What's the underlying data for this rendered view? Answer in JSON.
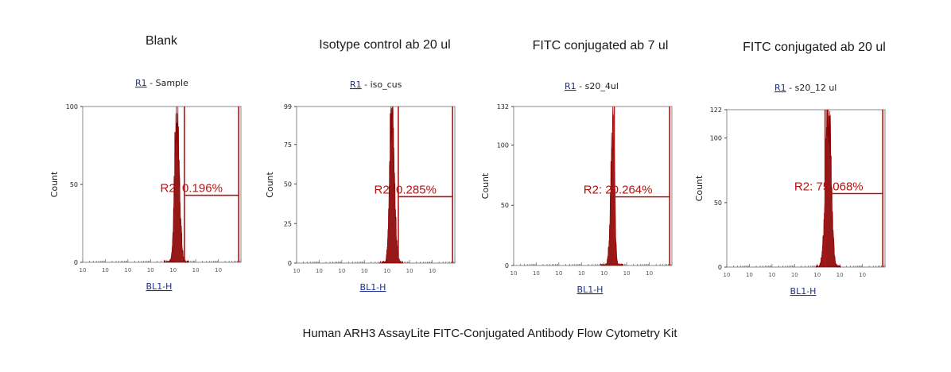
{
  "figure": {
    "caption": "Human ARH3 AssayLite FITC-Conjugated Antibody Flow Cytometry Kit"
  },
  "colors": {
    "histogram": "#8b0000",
    "gate": "#b01414",
    "frame": "#8a8a8a",
    "link": "#1f2f8f"
  },
  "chart_data": [
    {
      "type": "area",
      "title": "Blank",
      "region_link": "R1",
      "region_text": " - Sample",
      "xlabel": "BL1-H",
      "ylabel": "Count",
      "x_scale": "log",
      "xlim": [
        1,
        10000000
      ],
      "x_ticks": [
        "10",
        "10",
        "10",
        "10",
        "10",
        "10",
        "10"
      ],
      "ylim": [
        0,
        100
      ],
      "y_ticks": [
        0,
        50,
        100
      ],
      "histogram": {
        "peak_log_x": 4.15,
        "peak_count": 100,
        "sigma_left": 0.09,
        "sigma_right": 0.12,
        "tail_log_end": 4.55,
        "tail_level": 8
      },
      "gate": {
        "label": "R2: 0.196%",
        "start_log_x": 4.5,
        "end_log_x": 6.9,
        "bar_count": 43
      }
    },
    {
      "type": "area",
      "title": "Isotype control ab 20 ul",
      "region_link": "R1",
      "region_text": " - iso_cus",
      "xlabel": "BL1-H",
      "ylabel": "Count",
      "x_scale": "log",
      "xlim": [
        1,
        10000000
      ],
      "x_ticks": [
        "10",
        "10",
        "10",
        "10",
        "10",
        "10",
        "10"
      ],
      "ylim": [
        0,
        99
      ],
      "y_ticks": [
        0,
        25,
        50,
        75,
        99
      ],
      "histogram": {
        "peak_log_x": 4.2,
        "peak_count": 99,
        "sigma_left": 0.09,
        "sigma_right": 0.12,
        "tail_log_end": 4.55,
        "tail_level": 8
      },
      "gate": {
        "label": "R2: 0.285%",
        "start_log_x": 4.5,
        "end_log_x": 6.9,
        "bar_count": 42
      }
    },
    {
      "type": "area",
      "title": "FITC conjugated ab 7 ul",
      "region_link": "R1",
      "region_text": " - s20_4ul",
      "xlabel": "BL1-H",
      "ylabel": "Count",
      "x_scale": "log",
      "xlim": [
        1,
        10000000
      ],
      "x_ticks": [
        "10",
        "10",
        "10",
        "10",
        "10",
        "10",
        "10"
      ],
      "ylim": [
        0,
        132
      ],
      "y_ticks": [
        0,
        50,
        100,
        132
      ],
      "histogram": {
        "peak_log_x": 4.4,
        "peak_count": 120,
        "sigma_left": 0.1,
        "sigma_right": 0.07,
        "tail_log_end": 4.7,
        "tail_level": 3
      },
      "gate": {
        "label": "R2: 20.264%",
        "start_log_x": 4.45,
        "end_log_x": 6.9,
        "bar_count": 57
      }
    },
    {
      "type": "area",
      "title": "FITC conjugated ab 20 ul",
      "region_link": "R1",
      "region_text": " - s20_12 ul",
      "xlabel": "BL1-H",
      "ylabel": "Count",
      "x_scale": "log",
      "xlim": [
        1,
        10000000
      ],
      "x_ticks": [
        "10",
        "10",
        "10",
        "10",
        "10",
        "10",
        "10"
      ],
      "ylim": [
        0,
        122
      ],
      "y_ticks": [
        0,
        50,
        100,
        122
      ],
      "histogram": {
        "peak_log_x": 4.5,
        "peak_count": 122,
        "sigma_left": 0.13,
        "sigma_right": 0.12,
        "tail_log_end": 4.9,
        "tail_level": 5
      },
      "gate": {
        "label": "R2: 75.068%",
        "start_log_x": 4.35,
        "end_log_x": 6.9,
        "bar_count": 57
      }
    }
  ]
}
